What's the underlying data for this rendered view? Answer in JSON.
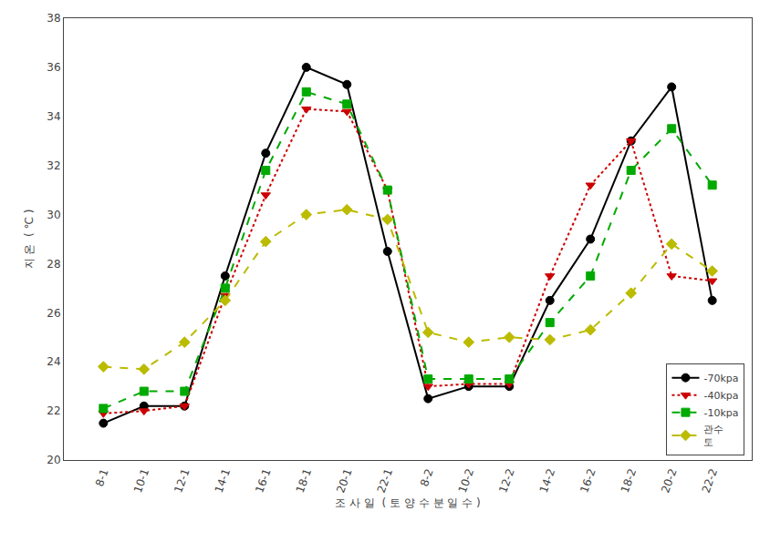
{
  "chart_data": {
    "type": "line",
    "xlabel": "조 사 일  ( 토 양 수 분 일 수 )",
    "ylabel": "지 온  ( ℃ )",
    "categories": [
      "8-1",
      "10-1",
      "12-1",
      "14-1",
      "16-1",
      "18-1",
      "20-1",
      "22-1",
      "8-2",
      "10-2",
      "12-2",
      "14-2",
      "16-2",
      "18-2",
      "20-2",
      "22-2"
    ],
    "series": [
      {
        "name": "-70kpa",
        "color": "#000000",
        "marker": "circle",
        "line_style": "solid",
        "values": [
          21.5,
          22.2,
          22.2,
          27.5,
          32.5,
          36.0,
          35.3,
          28.5,
          22.5,
          23.0,
          23.0,
          26.5,
          29.0,
          33.0,
          35.2,
          26.5
        ]
      },
      {
        "name": "-40kpa",
        "color": "#cc0000",
        "marker": "triangle-down",
        "line_style": "dotted",
        "values": [
          21.9,
          22.0,
          22.2,
          26.7,
          30.8,
          34.3,
          34.2,
          31.0,
          23.0,
          23.1,
          23.1,
          27.5,
          31.2,
          33.0,
          27.5,
          27.3
        ]
      },
      {
        "name": "-10kpa",
        "color": "#00aa00",
        "marker": "square",
        "line_style": "dashed",
        "values": [
          22.1,
          22.8,
          22.8,
          27.0,
          31.8,
          35.0,
          34.5,
          31.0,
          23.3,
          23.3,
          23.3,
          25.6,
          27.5,
          31.8,
          33.5,
          31.2
        ]
      },
      {
        "name": "관수\n토",
        "color": "#bbbb00",
        "marker": "diamond",
        "line_style": "dashed",
        "values": [
          23.8,
          23.7,
          24.8,
          26.5,
          28.9,
          30.0,
          30.2,
          29.8,
          25.2,
          24.8,
          25.0,
          24.9,
          25.3,
          26.8,
          28.8,
          27.7
        ]
      }
    ],
    "ylim": [
      20,
      38
    ],
    "yticks": [
      20,
      22,
      24,
      26,
      28,
      30,
      32,
      34,
      36,
      38
    ],
    "grid": false,
    "legend": "lower right"
  }
}
